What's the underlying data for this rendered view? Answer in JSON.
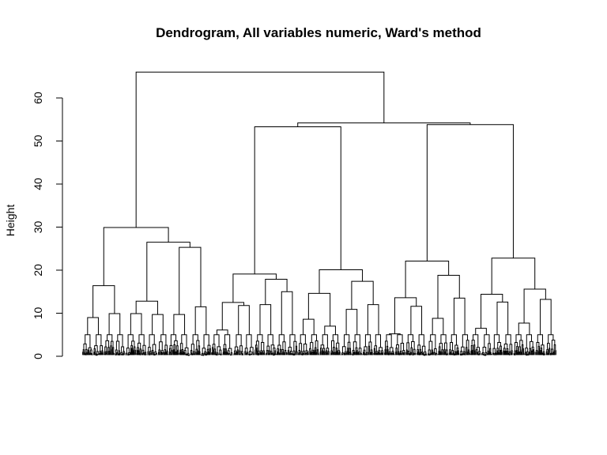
{
  "chart_data": {
    "type": "dendrogram",
    "title": "Dendrogram, All variables numeric, Ward's method",
    "ylabel": "Height",
    "xlabel": "",
    "ylim": [
      0,
      68
    ],
    "yticks": [
      0,
      10,
      20,
      30,
      40,
      50,
      60
    ],
    "grid": false,
    "line_color": "#000000",
    "leaf_band_height": 5,
    "merges": [
      {
        "id": "root",
        "height": 66,
        "left": "A",
        "right": "BC"
      },
      {
        "id": "BC",
        "height": 54.2,
        "left": "B",
        "right": "C"
      },
      {
        "id": "B",
        "height": 53.3,
        "left": "B1",
        "right": "B2"
      },
      {
        "id": "C",
        "height": 53.8,
        "left": "C1",
        "right": "C2"
      },
      {
        "id": "A",
        "height": 29.9,
        "left": "A1",
        "right": "A2"
      },
      {
        "id": "A1",
        "height": 16.4,
        "left": "A1a",
        "right": "A1b"
      },
      {
        "id": "A1a",
        "height": 9.0,
        "left": "L01",
        "right": "L02"
      },
      {
        "id": "A1b",
        "height": 9.9,
        "left": "L03",
        "right": "L04"
      },
      {
        "id": "A2",
        "height": 26.5,
        "left": "A2a",
        "right": "A2b"
      },
      {
        "id": "A2a",
        "height": 12.8,
        "left": "A2a1",
        "right": "A2a2"
      },
      {
        "id": "A2a1",
        "height": 9.9,
        "left": "L05",
        "right": "L06"
      },
      {
        "id": "A2a2",
        "height": 9.7,
        "left": "L07",
        "right": "L08"
      },
      {
        "id": "A2b",
        "height": 25.3,
        "left": "A2b1",
        "right": "A2b2"
      },
      {
        "id": "A2b1",
        "height": 9.7,
        "left": "L09",
        "right": "L10"
      },
      {
        "id": "A2b2",
        "height": 11.5,
        "left": "L11",
        "right": "L12"
      },
      {
        "id": "B1",
        "height": 19.1,
        "left": "B1a",
        "right": "B1b"
      },
      {
        "id": "B1a",
        "height": 12.5,
        "left": "B1a1",
        "right": "B1a2"
      },
      {
        "id": "B1a1",
        "height": 6.1,
        "left": "L13",
        "right": "L14"
      },
      {
        "id": "B1a2",
        "height": 11.8,
        "left": "L15",
        "right": "L16"
      },
      {
        "id": "B1b",
        "height": 17.9,
        "left": "B1b1",
        "right": "B1b2"
      },
      {
        "id": "B1b1",
        "height": 12.0,
        "left": "L17",
        "right": "L18"
      },
      {
        "id": "B1b2",
        "height": 15.0,
        "left": "L19",
        "right": "L20"
      },
      {
        "id": "B2",
        "height": 20.1,
        "left": "B2a",
        "right": "B2b"
      },
      {
        "id": "B2a",
        "height": 14.6,
        "left": "B2a1",
        "right": "B2a2"
      },
      {
        "id": "B2a1",
        "height": 8.6,
        "left": "L21",
        "right": "L22"
      },
      {
        "id": "B2a2",
        "height": 7.0,
        "left": "L23",
        "right": "L24"
      },
      {
        "id": "B2b",
        "height": 17.4,
        "left": "B2b1",
        "right": "B2b2"
      },
      {
        "id": "B2b1",
        "height": 10.9,
        "left": "L25",
        "right": "L26"
      },
      {
        "id": "B2b2",
        "height": 12.0,
        "left": "L27",
        "right": "L28"
      },
      {
        "id": "C1",
        "height": 22.1,
        "left": "C1a",
        "right": "C1b"
      },
      {
        "id": "C1a",
        "height": 13.6,
        "left": "C1a1",
        "right": "C1a2"
      },
      {
        "id": "C1a1",
        "height": 5.2,
        "left": "L29",
        "right": "L30"
      },
      {
        "id": "C1a2",
        "height": 11.6,
        "left": "L31",
        "right": "L32"
      },
      {
        "id": "C1b",
        "height": 18.8,
        "left": "C1b1",
        "right": "C1b2"
      },
      {
        "id": "C1b1",
        "height": 8.8,
        "left": "L33",
        "right": "L34"
      },
      {
        "id": "C1b2",
        "height": 13.5,
        "left": "L35",
        "right": "L36"
      },
      {
        "id": "C2",
        "height": 22.8,
        "left": "C2a",
        "right": "C2b"
      },
      {
        "id": "C2a",
        "height": 14.4,
        "left": "C2a1",
        "right": "C2a2"
      },
      {
        "id": "C2a1",
        "height": 6.5,
        "left": "L37",
        "right": "L38"
      },
      {
        "id": "C2a2",
        "height": 12.6,
        "left": "L39",
        "right": "L40"
      },
      {
        "id": "C2b",
        "height": 15.6,
        "left": "C2b1",
        "right": "C2b2"
      },
      {
        "id": "C2b1",
        "height": 7.7,
        "left": "L41",
        "right": "L42"
      },
      {
        "id": "C2b2",
        "height": 13.2,
        "left": "L43",
        "right": "L44"
      }
    ]
  }
}
